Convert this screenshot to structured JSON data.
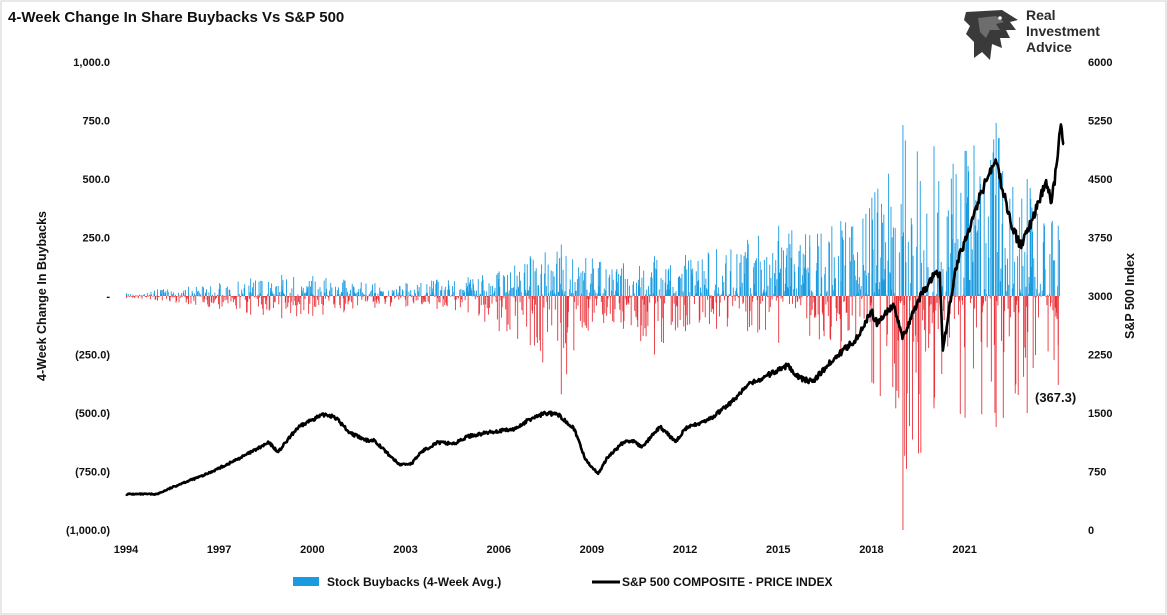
{
  "chart_data": {
    "type": "bar",
    "title": "4-Week Change In Share Buybacks Vs S&P 500",
    "ylabel_left": "4-Week Change In Buybacks",
    "ylabel_right": "S&P 500 Index",
    "ylim_left": [
      -1000,
      1000
    ],
    "ylim_right": [
      0,
      6000
    ],
    "xlim": [
      1994,
      2024.2
    ],
    "left_ticks": [
      "1,000.0",
      "750.0",
      "500.0",
      "250.0",
      "-",
      "(250.0)",
      "(500.0)",
      "(750.0)",
      "(1,000.0)"
    ],
    "right_ticks": [
      "6000",
      "5250",
      "4500",
      "3750",
      "3000",
      "2250",
      "1500",
      "750",
      "0"
    ],
    "x_ticks": [
      "1994",
      "1997",
      "2000",
      "2003",
      "2006",
      "2009",
      "2012",
      "2015",
      "2018",
      "2021"
    ],
    "colors": {
      "positive": "#1a9be0",
      "negative": "#e8333b",
      "line": "#000000"
    },
    "series": [
      {
        "name": "Stock Buybacks (4-Week Avg.)",
        "axis": "left",
        "type": "bar",
        "envelope": {
          "x": [
            1994,
            1995,
            1996,
            1997,
            1998,
            1999,
            2000,
            2001,
            2002,
            2003,
            2004,
            2005,
            2006,
            2007,
            2008,
            2009,
            2010,
            2011,
            2012,
            2013,
            2014,
            2015,
            2016,
            2017,
            2018,
            2019,
            2020,
            2021,
            2022,
            2023,
            2024
          ],
          "pos": [
            12,
            28,
            40,
            55,
            75,
            90,
            85,
            70,
            55,
            55,
            70,
            80,
            105,
            170,
            220,
            160,
            140,
            170,
            175,
            200,
            240,
            300,
            260,
            320,
            420,
            730,
            640,
            620,
            740,
            500,
            300
          ],
          "neg": [
            -8,
            -20,
            -35,
            -55,
            -80,
            -95,
            -85,
            -70,
            -50,
            -45,
            -55,
            -70,
            -150,
            -210,
            -420,
            -110,
            -140,
            -250,
            -150,
            -140,
            -150,
            -200,
            -170,
            -230,
            -370,
            -1000,
            -480,
            -520,
            -560,
            -500,
            -380
          ]
        }
      },
      {
        "name": "S&P 500 COMPOSITE - PRICE INDEX",
        "axis": "right",
        "type": "line",
        "x": [
          1994.0,
          1995.0,
          1995.8,
          1996.5,
          1997.3,
          1997.8,
          1998.6,
          1998.9,
          1999.5,
          2000.0,
          2000.4,
          2000.7,
          2001.2,
          2001.7,
          2002.0,
          2002.5,
          2002.8,
          2003.2,
          2003.5,
          2004.0,
          2004.6,
          2005.0,
          2005.8,
          2006.5,
          2007.0,
          2007.5,
          2007.9,
          2008.4,
          2008.8,
          2009.2,
          2009.5,
          2010.0,
          2010.3,
          2010.6,
          2011.2,
          2011.7,
          2012.0,
          2012.8,
          2013.5,
          2014.0,
          2014.5,
          2015.3,
          2015.7,
          2016.1,
          2016.8,
          2017.5,
          2018.0,
          2018.2,
          2018.7,
          2019.0,
          2019.5,
          2020.0,
          2020.2,
          2020.3,
          2020.7,
          2021.0,
          2021.5,
          2022.0,
          2022.5,
          2022.8,
          2023.2,
          2023.6,
          2023.8,
          2024.0,
          2024.1,
          2024.2
        ],
        "y": [
          460,
          460,
          600,
          700,
          850,
          950,
          1120,
          1000,
          1300,
          1420,
          1480,
          1460,
          1250,
          1150,
          1150,
          950,
          840,
          850,
          1000,
          1120,
          1110,
          1200,
          1260,
          1290,
          1420,
          1500,
          1480,
          1320,
          900,
          720,
          930,
          1120,
          1150,
          1060,
          1320,
          1130,
          1300,
          1420,
          1640,
          1850,
          1950,
          2110,
          1950,
          1900,
          2200,
          2450,
          2800,
          2640,
          2900,
          2450,
          2950,
          3250,
          3300,
          2300,
          3350,
          3700,
          4300,
          4750,
          3900,
          3650,
          4000,
          4450,
          4200,
          4800,
          5200,
          4950
        ]
      }
    ],
    "annotations": [
      {
        "text": "(367.3)"
      }
    ],
    "legend_position": "bottom"
  },
  "brand": {
    "logo_line1": "Real",
    "logo_line2": "Investment",
    "logo_line3": "Advice",
    "logo_icon": "eagle-head-icon"
  }
}
